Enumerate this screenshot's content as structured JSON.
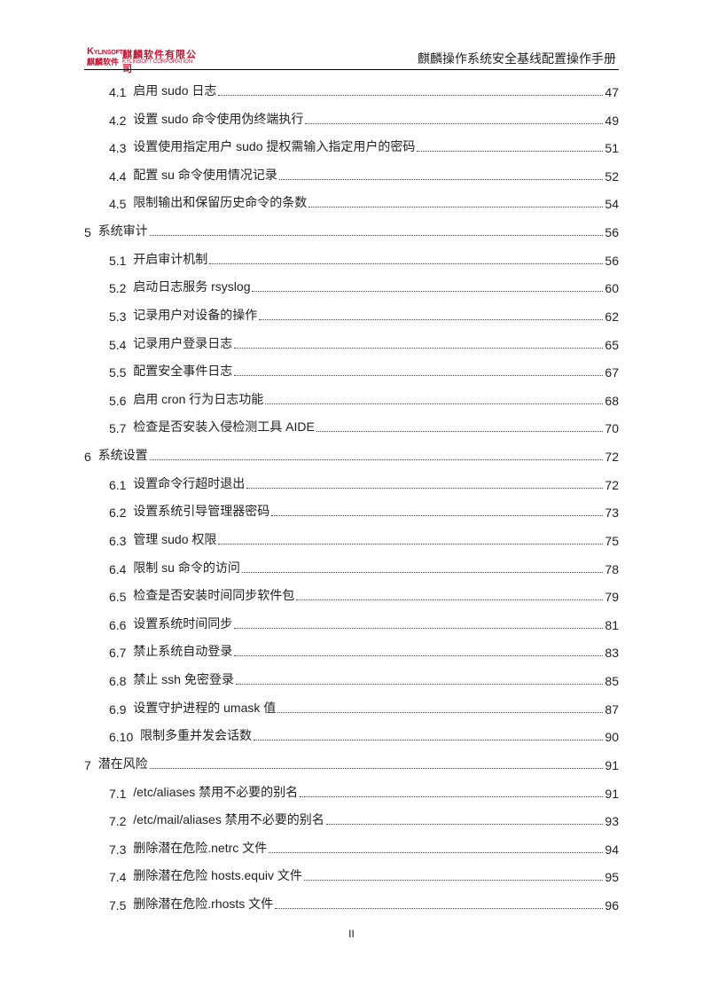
{
  "header": {
    "logo": {
      "brand_en": "KYLINSOFT",
      "brand_cn_short": "麒麟软件",
      "company_cn": "麒麟软件有限公司",
      "company_en": "KYLINSOFT CORPORATION",
      "color": "#c8102e"
    },
    "title": "麒麟操作系统安全基线配置操作手册"
  },
  "toc": [
    {
      "level": 2,
      "num": "4.1",
      "title": "启用 sudo 日志",
      "page": "47"
    },
    {
      "level": 2,
      "num": "4.2",
      "title": "设置 sudo 命令使用伪终端执行",
      "page": "49"
    },
    {
      "level": 2,
      "num": "4.3",
      "title": "设置使用指定用户 sudo 提权需输入指定用户的密码",
      "page": "51"
    },
    {
      "level": 2,
      "num": "4.4",
      "title": "配置 su 命令使用情况记录",
      "page": "52"
    },
    {
      "level": 2,
      "num": "4.5",
      "title": "限制输出和保留历史命令的条数",
      "page": "54"
    },
    {
      "level": 1,
      "num": "5",
      "title": "系统审计",
      "page": "56"
    },
    {
      "level": 2,
      "num": "5.1",
      "title": "开启审计机制",
      "page": "56"
    },
    {
      "level": 2,
      "num": "5.2",
      "title": "启动日志服务 rsyslog",
      "page": "60"
    },
    {
      "level": 2,
      "num": "5.3",
      "title": "记录用户对设备的操作",
      "page": "62"
    },
    {
      "level": 2,
      "num": "5.4",
      "title": "记录用户登录日志",
      "page": "65"
    },
    {
      "level": 2,
      "num": "5.5",
      "title": "配置安全事件日志",
      "page": "67"
    },
    {
      "level": 2,
      "num": "5.6",
      "title": "启用 cron 行为日志功能",
      "page": "68"
    },
    {
      "level": 2,
      "num": "5.7",
      "title": "检查是否安装入侵检测工具 AIDE",
      "page": "70"
    },
    {
      "level": 1,
      "num": "6",
      "title": "系统设置",
      "page": "72"
    },
    {
      "level": 2,
      "num": "6.1",
      "title": "设置命令行超时退出",
      "page": "72"
    },
    {
      "level": 2,
      "num": "6.2",
      "title": "设置系统引导管理器密码",
      "page": "73"
    },
    {
      "level": 2,
      "num": "6.3",
      "title": "管理 sudo 权限",
      "page": "75"
    },
    {
      "level": 2,
      "num": "6.4",
      "title": "限制 su 命令的访问",
      "page": "78"
    },
    {
      "level": 2,
      "num": "6.5",
      "title": "检查是否安装时间同步软件包",
      "page": "79"
    },
    {
      "level": 2,
      "num": "6.6",
      "title": "设置系统时间同步",
      "page": "81"
    },
    {
      "level": 2,
      "num": "6.7",
      "title": "禁止系统自动登录",
      "page": "83"
    },
    {
      "level": 2,
      "num": "6.8",
      "title": "禁止 ssh 免密登录",
      "page": "85"
    },
    {
      "level": 2,
      "num": "6.9",
      "title": "设置守护进程的 umask 值",
      "page": "87"
    },
    {
      "level": 2,
      "num": "6.10",
      "title": "限制多重并发会话数",
      "page": "90"
    },
    {
      "level": 1,
      "num": "7",
      "title": "潜在风险",
      "page": "91"
    },
    {
      "level": 2,
      "num": "7.1",
      "title": "/etc/aliases 禁用不必要的别名",
      "page": "91"
    },
    {
      "level": 2,
      "num": "7.2",
      "title": "/etc/mail/aliases 禁用不必要的别名",
      "page": "93"
    },
    {
      "level": 2,
      "num": "7.3",
      "title": "删除潜在危险.netrc 文件",
      "page": "94"
    },
    {
      "level": 2,
      "num": "7.4",
      "title": "删除潜在危险 hosts.equiv 文件",
      "page": "95"
    },
    {
      "level": 2,
      "num": "7.5",
      "title": "删除潜在危险.rhosts 文件",
      "page": "96"
    }
  ],
  "footer": {
    "page_number": "II"
  }
}
